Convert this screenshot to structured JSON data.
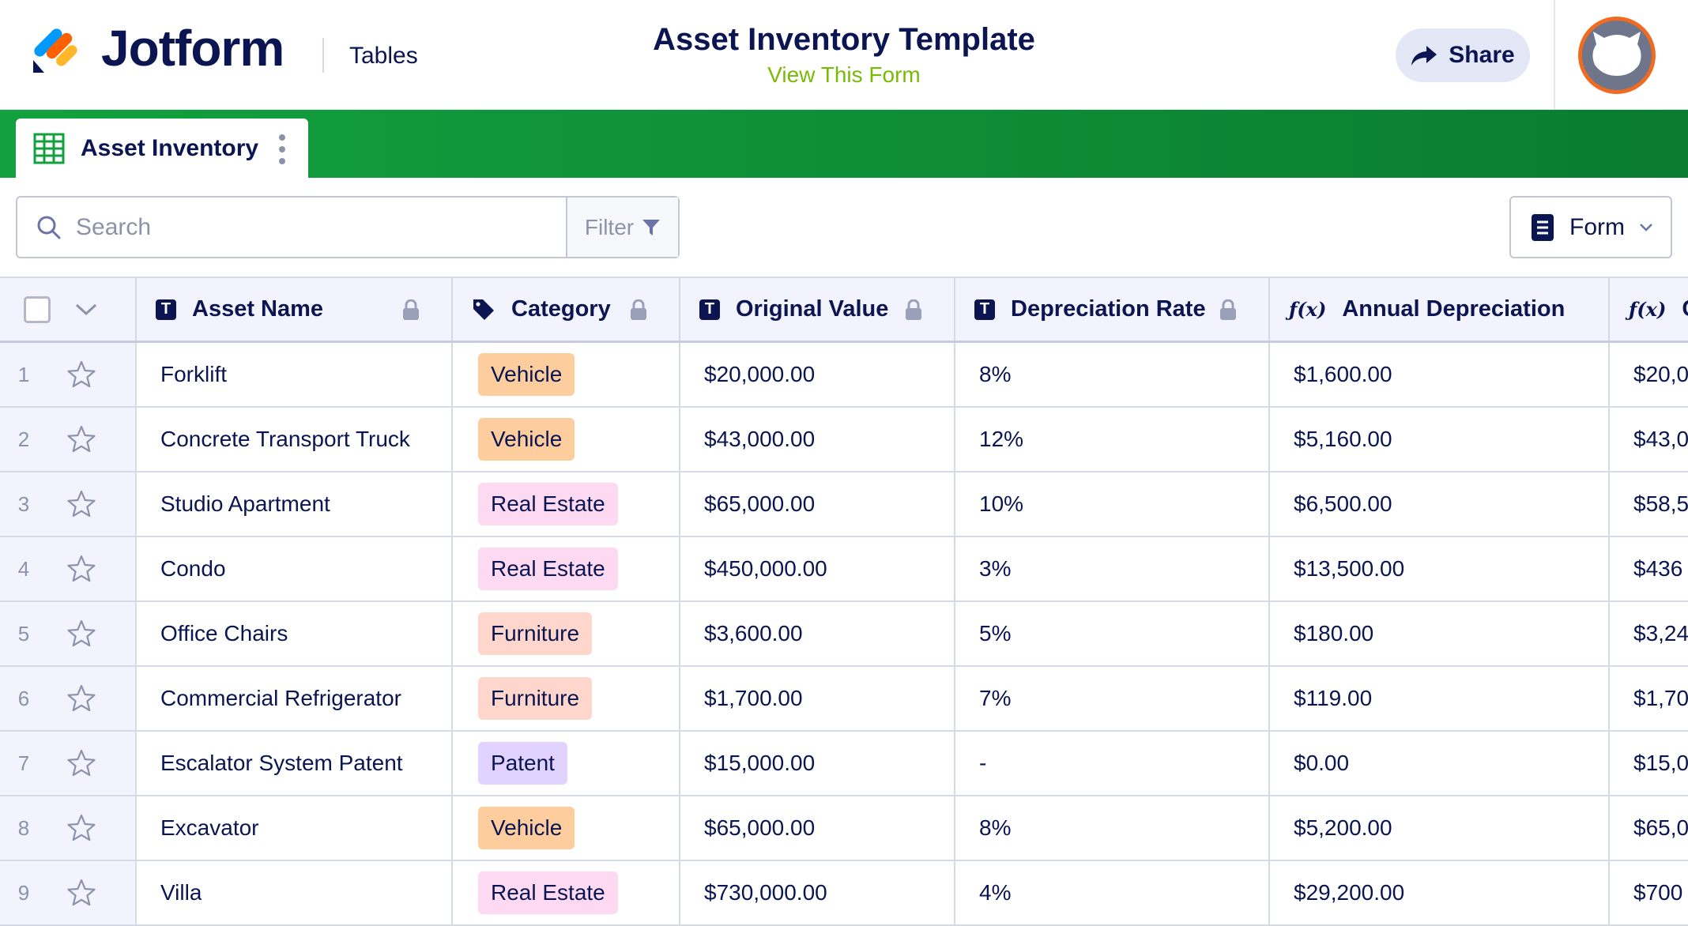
{
  "header": {
    "brand": "Jotform",
    "section": "Tables",
    "title": "Asset Inventory Template",
    "subtitle": "View This Form",
    "share_label": "Share"
  },
  "tab": {
    "label": "Asset Inventory"
  },
  "toolbar": {
    "search_placeholder": "Search",
    "filter_label": "Filter",
    "form_label": "Form"
  },
  "columns": [
    {
      "label": "Asset Name",
      "icon": "text-icon",
      "locked": true
    },
    {
      "label": "Category",
      "icon": "tag-icon",
      "locked": true
    },
    {
      "label": "Original Value",
      "icon": "text-icon",
      "locked": true
    },
    {
      "label": "Depreciation Rate",
      "icon": "text-icon",
      "locked": true
    },
    {
      "label": "Annual Depreciation",
      "icon": "formula-icon",
      "locked": false
    },
    {
      "label": "C",
      "icon": "formula-icon",
      "locked": false
    }
  ],
  "formula_symbol": "ƒ(x)",
  "text_type_symbol": "T",
  "category_colors": {
    "Vehicle": "#fdcd9d",
    "Real Estate": "#fddaf2",
    "Furniture": "#ffd6cc",
    "Patent": "#e1d2ff"
  },
  "rows": [
    {
      "num": "1",
      "name": "Forklift",
      "category": "Vehicle",
      "original": "$20,000.00",
      "rate": "8%",
      "annual": "$1,600.00",
      "partial": "$20,0"
    },
    {
      "num": "2",
      "name": "Concrete Transport Truck",
      "category": "Vehicle",
      "original": "$43,000.00",
      "rate": "12%",
      "annual": "$5,160.00",
      "partial": "$43,0"
    },
    {
      "num": "3",
      "name": "Studio Apartment",
      "category": "Real Estate",
      "original": "$65,000.00",
      "rate": "10%",
      "annual": "$6,500.00",
      "partial": "$58,5"
    },
    {
      "num": "4",
      "name": "Condo",
      "category": "Real Estate",
      "original": "$450,000.00",
      "rate": "3%",
      "annual": "$13,500.00",
      "partial": "$436"
    },
    {
      "num": "5",
      "name": "Office Chairs",
      "category": "Furniture",
      "original": "$3,600.00",
      "rate": "5%",
      "annual": "$180.00",
      "partial": "$3,24"
    },
    {
      "num": "6",
      "name": "Commercial Refrigerator",
      "category": "Furniture",
      "original": "$1,700.00",
      "rate": "7%",
      "annual": "$119.00",
      "partial": "$1,70"
    },
    {
      "num": "7",
      "name": "Escalator System Patent",
      "category": "Patent",
      "original": "$15,000.00",
      "rate": "-",
      "annual": "$0.00",
      "partial": "$15,0"
    },
    {
      "num": "8",
      "name": "Excavator",
      "category": "Vehicle",
      "original": "$65,000.00",
      "rate": "8%",
      "annual": "$5,200.00",
      "partial": "$65,0"
    },
    {
      "num": "9",
      "name": "Villa",
      "category": "Real Estate",
      "original": "$730,000.00",
      "rate": "4%",
      "annual": "$29,200.00",
      "partial": "$700"
    }
  ]
}
